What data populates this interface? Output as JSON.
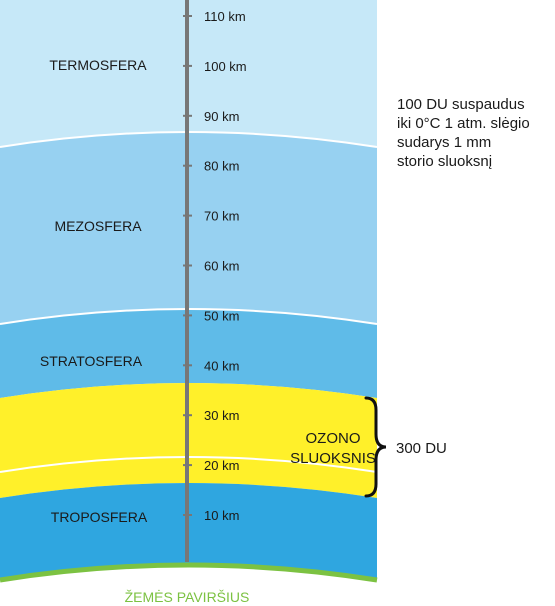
{
  "layers": {
    "termosfera": "TERMOSFERA",
    "mezosfera": "MEZOSFERA",
    "stratosfera": "STRATOSFERA",
    "troposfera": "TROPOSFERA"
  },
  "ozone": {
    "line1": "OZONO",
    "line2": "SLUOKSNIS"
  },
  "ozone_amount": "300 DU",
  "ground": "ŽEMĖS PAVIRŠIUS",
  "note_lines": [
    "100 DU suspaudus",
    "iki 0°C 1 atm. slėgio",
    "sudarys 1 mm",
    "storio sluoksnį"
  ],
  "ticks": [
    {
      "km": 110,
      "label": "110 km"
    },
    {
      "km": 100,
      "label": "100 km"
    },
    {
      "km": 90,
      "label": "90 km"
    },
    {
      "km": 80,
      "label": "80 km"
    },
    {
      "km": 70,
      "label": "70 km"
    },
    {
      "km": 60,
      "label": "60 km"
    },
    {
      "km": 50,
      "label": "50 km"
    },
    {
      "km": 40,
      "label": "40 km"
    },
    {
      "km": 30,
      "label": "30 km"
    },
    {
      "km": 20,
      "label": "20 km"
    },
    {
      "km": 10,
      "label": "10 km"
    }
  ],
  "colors": {
    "termosfera": "#c6e8f8",
    "mezosfera": "#97d1f1",
    "stratosfera": "#5fbbe8",
    "ozone": "#fff02a",
    "troposfera": "#2fa6e0",
    "ground": "#7cc242",
    "axis": "#777777"
  }
}
